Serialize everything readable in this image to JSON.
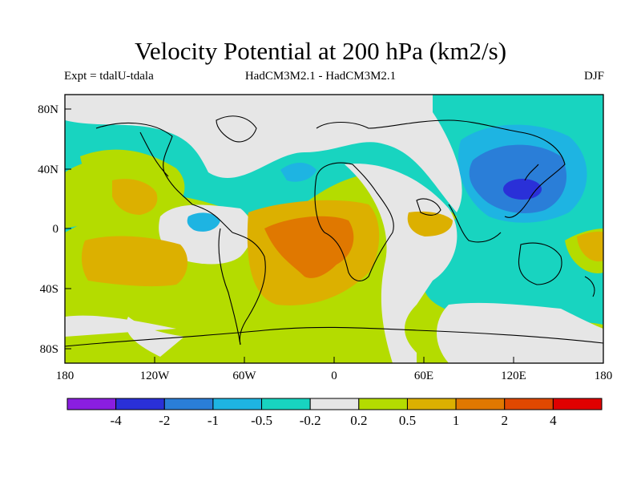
{
  "title": "Velocity Potential at 200 hPa (km2/s)",
  "subtitle": {
    "experiment": "Expt = tdalU-tdala",
    "models": "HadCM3M2.1 - HadCM3M2.1",
    "season": "DJF"
  },
  "map": {
    "lat_labels": [
      "80N",
      "40N",
      "0",
      "40S",
      "80S"
    ],
    "lon_labels": [
      "180",
      "120W",
      "60W",
      "0",
      "60E",
      "120E",
      "180"
    ]
  },
  "colorbar": {
    "colors": [
      "#8a1ee0",
      "#2a30d8",
      "#2a7ed8",
      "#1eb4e2",
      "#18d4c0",
      "#e6e6e6",
      "#b4dc00",
      "#dcb000",
      "#e07800",
      "#e04800",
      "#e00000"
    ],
    "labels": [
      "-4",
      "-2",
      "-1",
      "-0.5",
      "-0.2",
      "0.2",
      "0.5",
      "1",
      "2",
      "4"
    ]
  }
}
